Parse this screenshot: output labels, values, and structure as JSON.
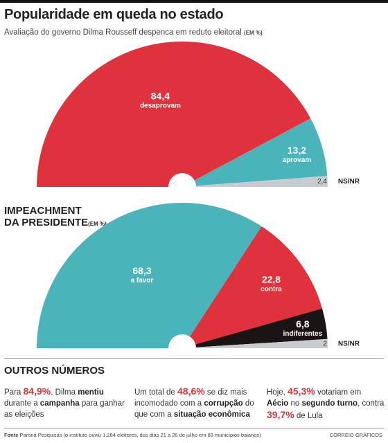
{
  "header": {
    "title": "Popularidade em queda no estado",
    "subtitle": "Avaliação do governo Dilma Rousseff despenca em reduto eleitoral",
    "unit": "(EM %)"
  },
  "impeachment": {
    "title_line1": "IMPEACHMENT",
    "title_line2": "DA PRESIDENTE",
    "unit": "(EM %)"
  },
  "chart_data": [
    {
      "type": "pie",
      "title": "Popularidade em queda no estado",
      "subtitle": "Avaliação do governo Dilma Rousseff despenca em reduto eleitoral (EM %)",
      "shape": "semicircle",
      "slices": [
        {
          "label": "desaprovam",
          "value": 84.4,
          "display": "84,4",
          "color": "#e0323c"
        },
        {
          "label": "aprovam",
          "value": 13.2,
          "display": "13,2",
          "color": "#4bb3ba"
        },
        {
          "label": "NS/NR",
          "value": 2.4,
          "display": "2,4",
          "color": "#c8cbd0"
        }
      ]
    },
    {
      "type": "pie",
      "title": "IMPEACHMENT DA PRESIDENTE (EM %)",
      "shape": "semicircle",
      "slices": [
        {
          "label": "a favor",
          "value": 68.3,
          "display": "68,3",
          "color": "#4bb3ba"
        },
        {
          "label": "contra",
          "value": 22.8,
          "display": "22,8",
          "color": "#e0323c"
        },
        {
          "label": "indiferentes",
          "value": 6.8,
          "display": "6,8",
          "color": "#1a1414"
        },
        {
          "label": "NS/NR",
          "value": 2,
          "display": "2",
          "color": "#c8cbd0"
        }
      ]
    }
  ],
  "outros": {
    "title": "OUTROS NÚMEROS",
    "block1": {
      "pre": "Para ",
      "big": "84,9%",
      "mid": ", Dilma ",
      "b1": "mentiu",
      "mid2": " durante a ",
      "b2": "campanha",
      "post": " para ganhar as eleições"
    },
    "block2": {
      "pre": "Um total de ",
      "big": "48,6%",
      "mid": " se diz mais incomodado com a ",
      "b1": "corrupção",
      "mid2": " do que com a ",
      "b2": "situação econômica",
      "post": ""
    },
    "block3": {
      "pre": "Hoje, ",
      "big": "45,3%",
      "mid": " votariam em ",
      "b1": "Aécio",
      "mid2": " no ",
      "b2": "segundo turno",
      "mid3": ", contra ",
      "big2": "39,7%",
      "post": " de Lula"
    }
  },
  "footer": {
    "label": "Fonte",
    "text": "Paraná Pesquisas (o instituto ouviu 1.284 eleitores, dos dias 21 a 26 de julho em 68 municípios baianos)",
    "credit": "CORREIO GRÁFICOS"
  }
}
